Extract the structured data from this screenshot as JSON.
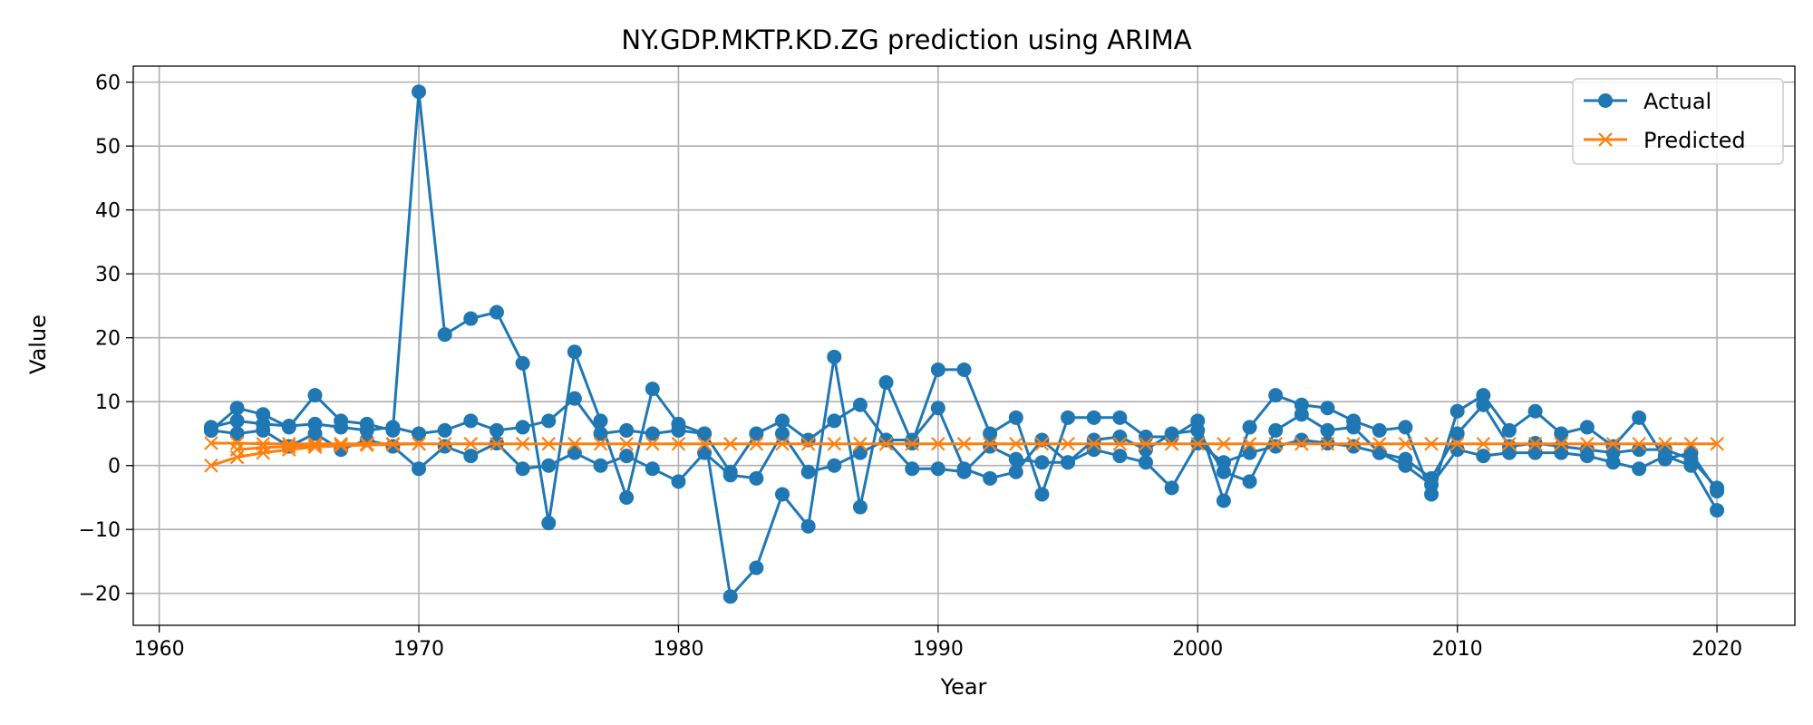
{
  "colors": {
    "actual": "#1f77b4",
    "predicted": "#ff7f0e",
    "grid": "#b0b0b0"
  },
  "chart_data": {
    "type": "line",
    "title": "NY.GDP.MKTP.KD.ZG prediction using ARIMA",
    "xlabel": "Year",
    "ylabel": "Value",
    "xlim": [
      1959,
      2023
    ],
    "ylim": [
      -25,
      62.5
    ],
    "xticks": [
      1960,
      1970,
      1980,
      1990,
      2000,
      2010,
      2020
    ],
    "xtick_labels": [
      "1960",
      "1970",
      "1980",
      "1990",
      "2000",
      "2010",
      "2020"
    ],
    "yticks": [
      -20,
      -10,
      0,
      10,
      20,
      30,
      40,
      50,
      60
    ],
    "ytick_labels": [
      "−20",
      "−10",
      "0",
      "10",
      "20",
      "30",
      "40",
      "50",
      "60"
    ],
    "grid": true,
    "legend": {
      "placement": "top-right",
      "entries": [
        {
          "label": "Actual",
          "marker": "circle"
        },
        {
          "label": "Predicted",
          "marker": "x"
        }
      ]
    },
    "series": [
      {
        "name": "Actual",
        "marker": "circle",
        "segments": [
          {
            "x": [
              1962,
              1963,
              1964,
              1965,
              1966,
              1967,
              1968,
              1969,
              1970,
              1971,
              1972,
              1973,
              1974,
              1975,
              1976,
              1977,
              1978,
              1979,
              1980,
              1981,
              1982,
              1983,
              1984,
              1985,
              1986,
              1987,
              1988,
              1989,
              1990,
              1991,
              1992,
              1993,
              1994,
              1995,
              1996,
              1997,
              1998,
              1999,
              2000,
              2001,
              2002,
              2003,
              2004,
              2005,
              2006,
              2007,
              2008,
              2009,
              2010,
              2011,
              2012,
              2013,
              2014,
              2015,
              2016,
              2017,
              2018,
              2019,
              2020
            ],
            "y": [
              5.5,
              9.0,
              8.0,
              6.0,
              11.0,
              7.0,
              6.5,
              5.5,
              58.5,
              20.5,
              23.0,
              24.0,
              16.0,
              -9.0,
              17.8,
              7.0,
              -5.0,
              12.0,
              6.5,
              5.0,
              -20.5,
              -16.0,
              -4.5,
              -9.5,
              17.0,
              -6.5,
              13.0,
              3.5,
              15.0,
              15.0,
              5.0,
              7.5,
              -4.5,
              7.5,
              7.5,
              7.5,
              4.5,
              4.5,
              7.0,
              -5.5,
              6.0,
              11.0,
              9.5,
              9.0,
              7.0,
              5.5,
              6.0,
              -4.5,
              8.5,
              11.0,
              5.5,
              8.5,
              5.0,
              6.0,
              3.0,
              7.5,
              1.0,
              2.0,
              -4.0
            ]
          },
          {
            "x": [
              1962,
              1963,
              1964,
              1965,
              1966,
              1967,
              1968,
              1969,
              1970,
              1971,
              1972,
              1973,
              1974,
              1975,
              1976,
              1977,
              1978,
              1979,
              1980,
              1981,
              1982,
              1983,
              1984,
              1985,
              1986,
              1987,
              1988,
              1989,
              1990,
              1991,
              1992,
              1993,
              1994,
              1995,
              1996,
              1997,
              1998,
              1999,
              2000,
              2001,
              2002,
              2003,
              2004,
              2005,
              2006,
              2007,
              2008,
              2009,
              2010,
              2011,
              2012,
              2013,
              2014,
              2015,
              2016,
              2017,
              2018,
              2019,
              2020
            ],
            "y": [
              6.0,
              7.0,
              6.5,
              6.2,
              6.5,
              6.0,
              5.5,
              6.0,
              5.0,
              5.5,
              7.0,
              5.5,
              6.0,
              7.0,
              10.5,
              5.0,
              5.5,
              5.0,
              5.5,
              5.0,
              -1.0,
              5.0,
              7.0,
              4.0,
              7.0,
              9.5,
              4.0,
              4.0,
              9.0,
              -0.5,
              -2.0,
              -1.0,
              4.0,
              0.5,
              4.0,
              4.5,
              2.5,
              5.0,
              5.5,
              -1.0,
              -2.5,
              5.5,
              8.0,
              5.5,
              6.0,
              2.0,
              1.0,
              -2.0,
              5.0,
              9.5,
              3.0,
              3.5,
              3.0,
              2.5,
              2.0,
              2.5,
              2.5,
              1.0,
              -3.5
            ]
          },
          {
            "x": [
              1962,
              1963,
              1964,
              1965,
              1966,
              1967,
              1968,
              1969,
              1970,
              1971,
              1972,
              1973,
              1974,
              1975,
              1976,
              1977,
              1978,
              1979,
              1980,
              1981,
              1982,
              1983,
              1984,
              1985,
              1986,
              1987,
              1988,
              1989,
              1990,
              1991,
              1992,
              1993,
              1994,
              1995,
              1996,
              1997,
              1998,
              1999,
              2000,
              2001,
              2002,
              2003,
              2004,
              2005,
              2006,
              2007,
              2008,
              2009,
              2010,
              2011,
              2012,
              2013,
              2014,
              2015,
              2016,
              2017,
              2018,
              2019,
              2020
            ],
            "y": [
              5.5,
              5.0,
              5.5,
              3.0,
              5.0,
              2.5,
              4.0,
              3.0,
              -0.5,
              3.0,
              1.5,
              3.5,
              -0.5,
              0.0,
              2.0,
              0.0,
              1.5,
              -0.5,
              -2.5,
              2.0,
              -1.5,
              -2.0,
              5.0,
              -1.0,
              0.0,
              2.0,
              4.0,
              -0.5,
              -0.5,
              -1.0,
              3.0,
              1.0,
              0.5,
              0.5,
              2.5,
              1.5,
              0.5,
              -3.5,
              3.5,
              0.5,
              2.0,
              3.0,
              4.0,
              3.5,
              3.0,
              2.0,
              0.0,
              -3.0,
              2.5,
              1.5,
              2.0,
              2.0,
              2.0,
              1.5,
              0.5,
              -0.5,
              1.5,
              0.0,
              -7.0
            ]
          }
        ]
      },
      {
        "name": "Predicted",
        "marker": "x",
        "segments": [
          {
            "x": [
              1962,
              1963,
              1964,
              1965,
              1966,
              1967,
              1968,
              1969,
              1970,
              1971,
              1972,
              1973,
              1974,
              1975,
              1976,
              1977,
              1978,
              1979,
              1980,
              1981,
              1982,
              1983,
              1984,
              1985,
              1986,
              1987,
              1988,
              1989,
              1990,
              1991,
              1992,
              1993,
              1994,
              1995,
              1996,
              1997,
              1998,
              1999,
              2000,
              2001,
              2002,
              2003,
              2004,
              2005,
              2006,
              2007,
              2008,
              2009,
              2010,
              2011,
              2012,
              2013,
              2014,
              2015,
              2016,
              2017,
              2018,
              2019,
              2020
            ],
            "y": [
              3.5,
              3.5,
              3.4,
              3.4,
              3.4,
              3.4,
              3.4,
              3.4,
              3.4,
              3.4,
              3.4,
              3.4,
              3.4,
              3.4,
              3.4,
              3.4,
              3.4,
              3.4,
              3.4,
              3.4,
              3.4,
              3.4,
              3.4,
              3.4,
              3.4,
              3.4,
              3.4,
              3.4,
              3.4,
              3.4,
              3.4,
              3.4,
              3.4,
              3.4,
              3.4,
              3.4,
              3.4,
              3.4,
              3.4,
              3.4,
              3.4,
              3.4,
              3.4,
              3.4,
              3.4,
              3.4,
              3.4,
              3.4,
              3.4,
              3.4,
              3.4,
              3.4,
              3.4,
              3.4,
              3.4,
              3.4,
              3.4,
              3.4,
              3.4
            ]
          },
          {
            "x": [
              1962,
              1963,
              1964,
              1965,
              1966,
              1967,
              1968,
              1969,
              1970
            ],
            "y": [
              0.0,
              1.3,
              2.0,
              2.5,
              2.9,
              3.1,
              3.2,
              3.3,
              3.4
            ]
          },
          {
            "x": [
              1963,
              1964,
              1965,
              1966,
              1967,
              1968,
              1969,
              1970
            ],
            "y": [
              2.5,
              2.8,
              3.0,
              3.2,
              3.3,
              3.4,
              3.4,
              3.4
            ]
          }
        ]
      }
    ]
  }
}
